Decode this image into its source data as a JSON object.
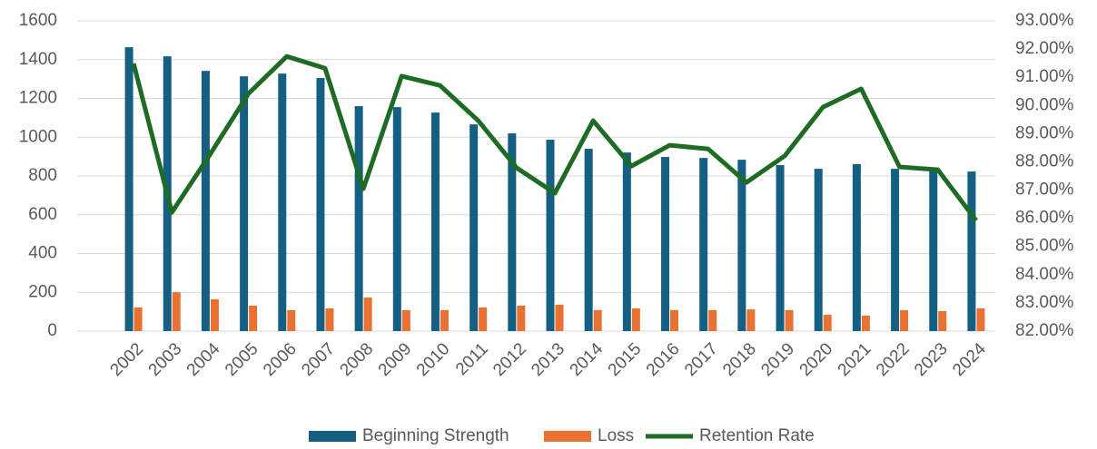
{
  "chart_data": {
    "type": "bar_line",
    "categories": [
      "2002",
      "2003",
      "2004",
      "2005",
      "2006",
      "2007",
      "2008",
      "2009",
      "2010",
      "2011",
      "2012",
      "2013",
      "2014",
      "2015",
      "2016",
      "2017",
      "2018",
      "2019",
      "2020",
      "2021",
      "2022",
      "2023",
      "2024"
    ],
    "series": [
      {
        "name": "Beginning Strength",
        "color": "#156082",
        "type": "bar",
        "values": [
          1464,
          1417,
          1342,
          1314,
          1328,
          1305,
          1160,
          1155,
          1127,
          1066,
          1020,
          987,
          940,
          921,
          898,
          893,
          884,
          856,
          837,
          861,
          837,
          837,
          823
        ]
      },
      {
        "name": "Loss",
        "color": "#e97132",
        "type": "bar",
        "values": [
          122,
          200,
          164,
          131,
          108,
          117,
          173,
          108,
          108,
          122,
          131,
          136,
          108,
          117,
          108,
          108,
          112,
          108,
          84,
          80,
          108,
          103,
          117
        ]
      },
      {
        "name": "Retention Rate",
        "color": "#1e6b24",
        "type": "line",
        "axis": "y2",
        "values": [
          91.49,
          86.21,
          88.27,
          90.42,
          91.74,
          91.32,
          87.05,
          91.04,
          90.71,
          89.46,
          87.79,
          86.89,
          89.46,
          87.85,
          88.59,
          88.46,
          87.27,
          88.21,
          89.94,
          90.59,
          87.82,
          87.72,
          85.92
        ]
      }
    ],
    "ylim": [
      0,
      1600
    ],
    "yticks": [
      0,
      200,
      400,
      600,
      800,
      1000,
      1200,
      1400,
      1600
    ],
    "y2lim": [
      82,
      93
    ],
    "y2ticks": [
      {
        "value": 82,
        "label": "82.00%"
      },
      {
        "value": 83,
        "label": "83.00%"
      },
      {
        "value": 84,
        "label": "84.00%"
      },
      {
        "value": 85,
        "label": "85.00%"
      },
      {
        "value": 86,
        "label": "86.00%"
      },
      {
        "value": 87,
        "label": "87.00%"
      },
      {
        "value": 88,
        "label": "88.00%"
      },
      {
        "value": 89,
        "label": "89.00%"
      },
      {
        "value": 90,
        "label": "90.00%"
      },
      {
        "value": 91,
        "label": "91.00%"
      },
      {
        "value": 92,
        "label": "92.00%"
      },
      {
        "value": 93,
        "label": "93.00%"
      }
    ],
    "grid": true,
    "legend": "bottom"
  }
}
